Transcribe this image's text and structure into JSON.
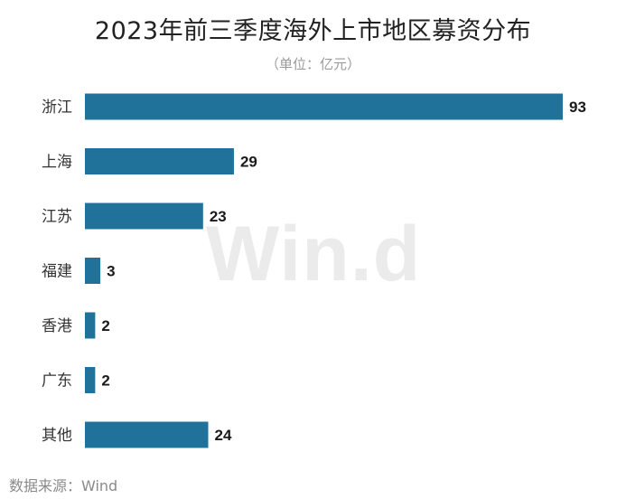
{
  "title": "2023年前三季度海外上市地区募资分布",
  "subtitle": "（单位：亿元）",
  "watermark": "Win.d",
  "source": "数据来源：Wind",
  "colors": {
    "bar": "#21729b",
    "label": "#333333",
    "value": "#1a1a1a"
  },
  "chart_data": {
    "type": "bar",
    "orientation": "horizontal",
    "title": "2023年前三季度海外上市地区募资分布",
    "subtitle": "（单位：亿元）",
    "xlabel": "",
    "ylabel": "",
    "grid": false,
    "legend": "none",
    "xlim": [
      0,
      93
    ],
    "categories": [
      "浙江",
      "上海",
      "江苏",
      "福建",
      "香港",
      "广东",
      "其他"
    ],
    "values": [
      93,
      29,
      23,
      3,
      2,
      2,
      24
    ]
  }
}
